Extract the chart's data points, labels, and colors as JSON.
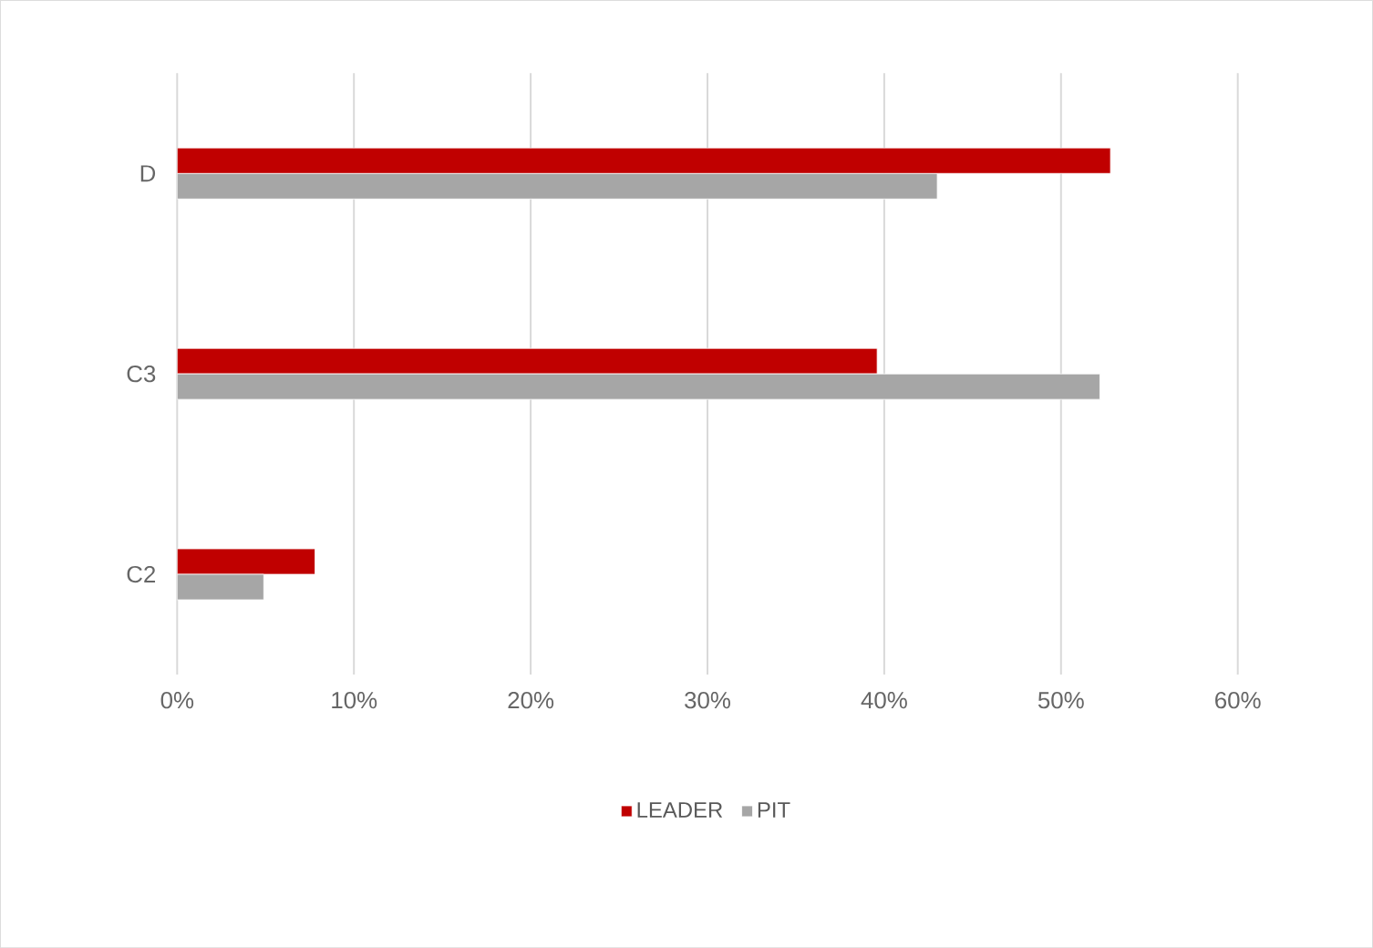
{
  "chart_data": {
    "type": "bar",
    "orientation": "horizontal",
    "categories": [
      "D",
      "C3",
      "C2"
    ],
    "series": [
      {
        "name": "LEADER",
        "color": "#c00000",
        "values": [
          52.8,
          39.6,
          7.8
        ]
      },
      {
        "name": "PIT",
        "color": "#a6a6a6",
        "values": [
          43.0,
          52.2,
          4.9
        ]
      }
    ],
    "xlim": [
      0,
      60
    ],
    "xticks": [
      {
        "value": 0,
        "label": "0%"
      },
      {
        "value": 10,
        "label": "10%"
      },
      {
        "value": 20,
        "label": "20%"
      },
      {
        "value": 30,
        "label": "30%"
      },
      {
        "value": 40,
        "label": "40%"
      },
      {
        "value": 50,
        "label": "50%"
      },
      {
        "value": 60,
        "label": "60%"
      }
    ],
    "grid": "x",
    "legend": "bottom"
  }
}
